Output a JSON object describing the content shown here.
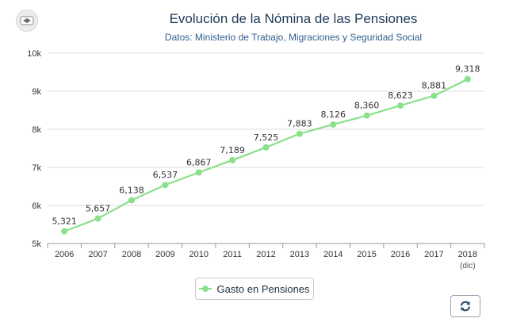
{
  "chart_data": {
    "type": "line",
    "title": "Evolución de la Nómina de las Pensiones",
    "subtitle": "Datos: Ministerio de Trabajo, Migraciones y Seguridad Social",
    "categories": [
      "2006",
      "2007",
      "2008",
      "2009",
      "2010",
      "2011",
      "2012",
      "2013",
      "2014",
      "2015",
      "2016",
      "2017",
      "2018"
    ],
    "category_sublabels": [
      "",
      "",
      "",
      "",
      "",
      "",
      "",
      "",
      "",
      "",
      "",
      "",
      "(dic)"
    ],
    "series": [
      {
        "name": "Gasto en Pensiones",
        "color": "#8be08b",
        "values": [
          5321,
          5657,
          6138,
          6537,
          6867,
          7189,
          7525,
          7883,
          8126,
          8360,
          8623,
          8881,
          9318
        ],
        "labels": [
          "5,321",
          "5,657",
          "6,138",
          "6,537",
          "6,867",
          "7,189",
          "7,525",
          "7,883",
          "8,126",
          "8,360",
          "8,623",
          "8,881",
          "9,318"
        ]
      }
    ],
    "ylim": [
      5000,
      10000
    ],
    "yticks": [
      5000,
      6000,
      7000,
      8000,
      9000,
      10000
    ],
    "ytick_labels": [
      "5k",
      "6k",
      "7k",
      "8k",
      "9k",
      "10k"
    ],
    "xlabel": "",
    "ylabel": "",
    "grid": true,
    "legend_position": "bottom-center"
  },
  "colors": {
    "title": "#1e3a57",
    "subtitle": "#2f5e8f",
    "axis_text": "#333333",
    "grid": "#dddddd"
  },
  "icons": {
    "logo": "logo-badge",
    "refresh": "refresh-icon"
  }
}
